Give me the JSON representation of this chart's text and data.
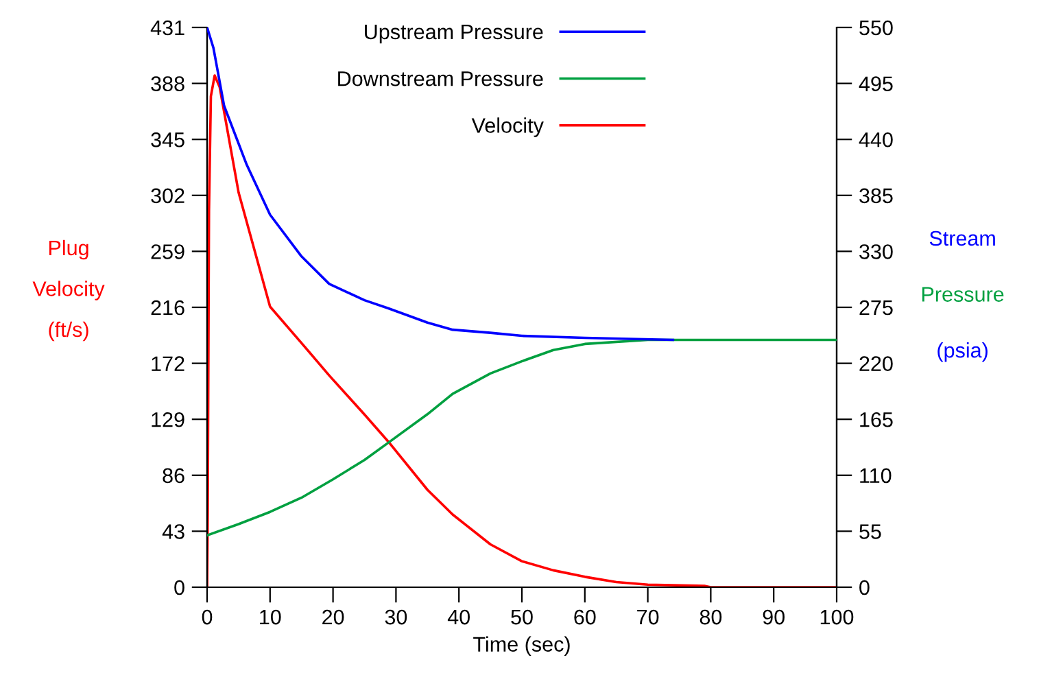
{
  "chart_data": {
    "type": "line",
    "xlabel": "Time (sec)",
    "ylabel": "Plug\nVelocity\n(ft/s)",
    "y2label": "Stream\nPressure\n(psia)",
    "xlim": [
      0,
      100
    ],
    "xticks": [
      0,
      10,
      20,
      30,
      40,
      50,
      60,
      70,
      80,
      90,
      100
    ],
    "ylim": [
      0,
      431
    ],
    "yticks": [
      0,
      {
        "value": 43.1,
        "label": "43"
      },
      {
        "value": 86.2,
        "label": "86"
      },
      {
        "value": 129.3,
        "label": "129"
      },
      {
        "value": 172.4,
        "label": "172"
      },
      {
        "value": 215.5,
        "label": "216"
      },
      {
        "value": 258.6,
        "label": "259"
      },
      {
        "value": 301.7,
        "label": "302"
      },
      {
        "value": 344.8,
        "label": "345"
      },
      {
        "value": 387.9,
        "label": "388"
      },
      431
    ],
    "y2lim": [
      0,
      550
    ],
    "y2ticks": [
      0,
      55,
      110,
      165,
      220,
      275,
      330,
      385,
      440,
      495,
      550
    ],
    "legend": "top",
    "grid": false,
    "series": [
      {
        "name": "Upstream Pressure",
        "color": "#0000ff",
        "axis": "y2",
        "x": [
          0,
          1,
          2.7,
          6.3,
          10,
          15,
          19.4,
          25,
          28.8,
          35,
          39,
          45,
          50,
          60,
          74
        ],
        "values": [
          550,
          530,
          473,
          415,
          366,
          325,
          298,
          282,
          274,
          260,
          253,
          250,
          247,
          245,
          243
        ]
      },
      {
        "name": "Downstream Pressure",
        "color": "#00a040",
        "axis": "y2",
        "x": [
          0,
          5,
          10,
          15,
          20,
          25,
          29,
          35,
          39,
          45,
          50,
          55,
          60,
          70,
          100
        ],
        "values": [
          51,
          62,
          74,
          88,
          106,
          125,
          143,
          170,
          190,
          210,
          222,
          233,
          239,
          243,
          243
        ]
      },
      {
        "name": "Velocity",
        "color": "#ff0000",
        "axis": "y",
        "x": [
          0,
          0.1,
          0.3,
          0.6,
          1.2,
          2,
          5,
          10,
          15,
          19.4,
          25,
          28.8,
          35,
          39,
          45,
          50,
          55,
          60,
          65,
          70,
          79,
          80,
          100
        ],
        "values": [
          0,
          58,
          290,
          378,
          394,
          385,
          304,
          216,
          188,
          163,
          133,
          112,
          75,
          56,
          33,
          20,
          13,
          8,
          4,
          2,
          1,
          0,
          0
        ]
      }
    ]
  }
}
